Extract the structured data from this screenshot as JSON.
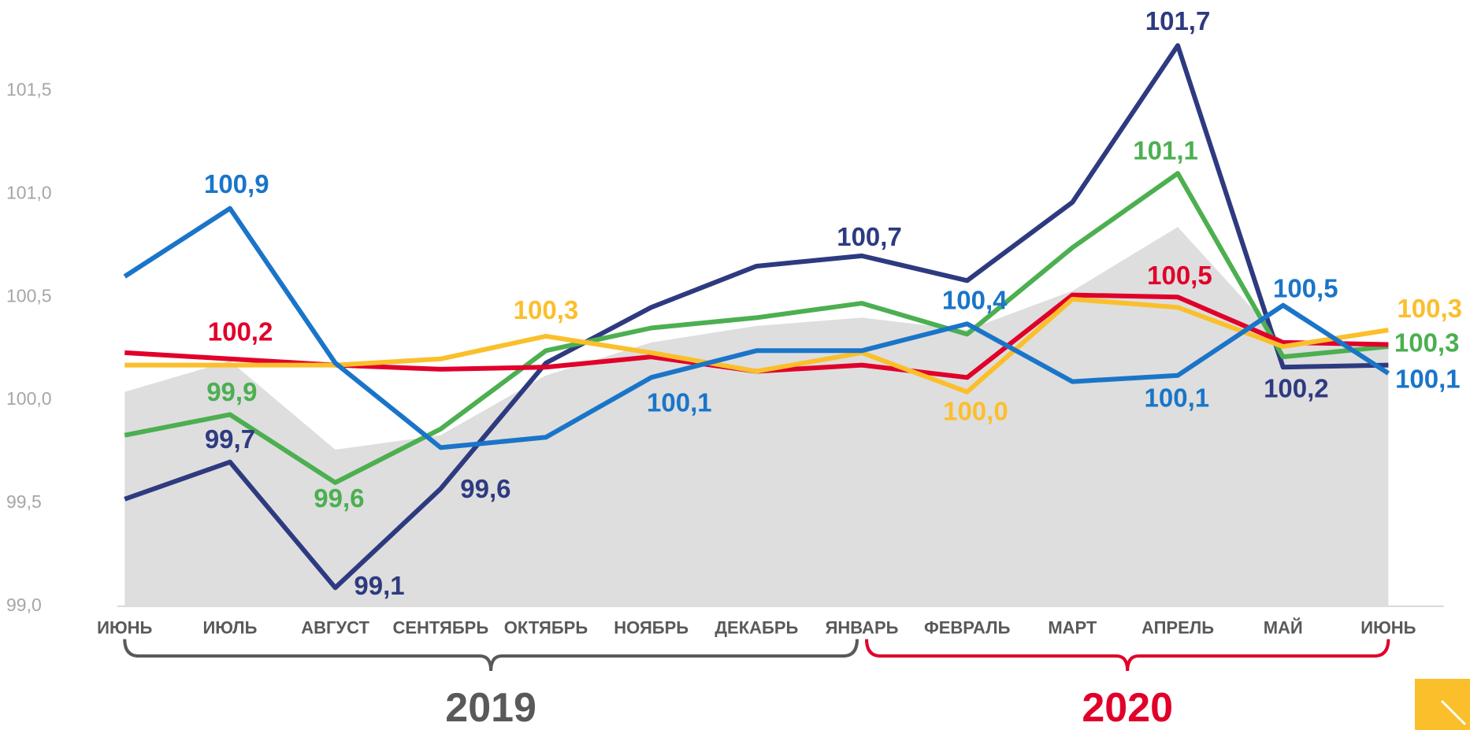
{
  "chart_data": {
    "type": "line",
    "categories": [
      "ИЮНЬ",
      "ИЮЛЬ",
      "АВГУСТ",
      "СЕНТЯБРЬ",
      "ОКТЯБРЬ",
      "НОЯБРЬ",
      "ДЕКАБРЬ",
      "ЯНВАРЬ",
      "ФЕВРАЛЬ",
      "МАРТ",
      "АПРЕЛЬ",
      "МАЙ",
      "ИЮНЬ"
    ],
    "ylim": [
      99,
      101.8
    ],
    "yticks": [
      {
        "value": 99,
        "label": "99,0"
      },
      {
        "value": 99.5,
        "label": "99,5"
      },
      {
        "value": 100,
        "label": "100,0"
      },
      {
        "value": 100.5,
        "label": "100,5"
      },
      {
        "value": 101,
        "label": "101,0"
      },
      {
        "value": 101.5,
        "label": "101,5"
      }
    ],
    "series": [
      {
        "kind": "area",
        "color": "#dedede",
        "values": [
          100.04,
          100.19,
          99.76,
          99.83,
          100.12,
          100.28,
          100.36,
          100.4,
          100.34,
          100.53,
          100.84,
          100.28,
          100.25
        ]
      },
      {
        "color": "#2e3a80",
        "values": [
          99.52,
          99.7,
          99.09,
          99.57,
          100.18,
          100.45,
          100.65,
          100.7,
          100.58,
          100.96,
          101.72,
          100.16,
          100.17
        ],
        "value_labels": [
          null,
          "99,7",
          "99,1",
          "99,6",
          null,
          null,
          null,
          "100,7",
          null,
          null,
          "101,7",
          "100,2",
          null
        ]
      },
      {
        "color": "#4caf50",
        "values": [
          99.83,
          99.93,
          99.6,
          99.86,
          100.24,
          100.35,
          100.4,
          100.47,
          100.32,
          100.74,
          101.1,
          100.21,
          100.26
        ],
        "value_labels": [
          null,
          "99,9",
          "99,6",
          null,
          null,
          null,
          null,
          null,
          null,
          null,
          "101,1",
          null,
          "100,3"
        ]
      },
      {
        "color": "#e0002a",
        "values": [
          100.23,
          100.2,
          100.17,
          100.15,
          100.16,
          100.21,
          100.14,
          100.17,
          100.11,
          100.51,
          100.5,
          100.28,
          100.27
        ],
        "value_labels": [
          null,
          "100,2",
          null,
          null,
          null,
          null,
          null,
          null,
          null,
          null,
          "100,5",
          null,
          null
        ]
      },
      {
        "color": "#fbbf2c",
        "values": [
          100.17,
          100.17,
          100.17,
          100.2,
          100.31,
          100.23,
          100.14,
          100.23,
          100.04,
          100.49,
          100.45,
          100.26,
          100.34
        ],
        "value_labels": [
          null,
          null,
          null,
          null,
          "100,3",
          null,
          null,
          null,
          "100,0",
          null,
          null,
          null,
          "100,3"
        ]
      },
      {
        "color": "#1a75c9",
        "values": [
          100.6,
          100.93,
          100.18,
          99.77,
          99.82,
          100.11,
          100.24,
          100.24,
          100.37,
          100.09,
          100.12,
          100.46,
          100.13
        ],
        "value_labels": [
          null,
          "100,9",
          null,
          null,
          null,
          "100,1",
          null,
          null,
          "100,4",
          null,
          "100,1",
          "100,5",
          "100,1"
        ]
      }
    ],
    "groups": [
      {
        "label": "2019",
        "color": "#595959"
      },
      {
        "label": "2020",
        "color": "#e0002a"
      }
    ]
  }
}
